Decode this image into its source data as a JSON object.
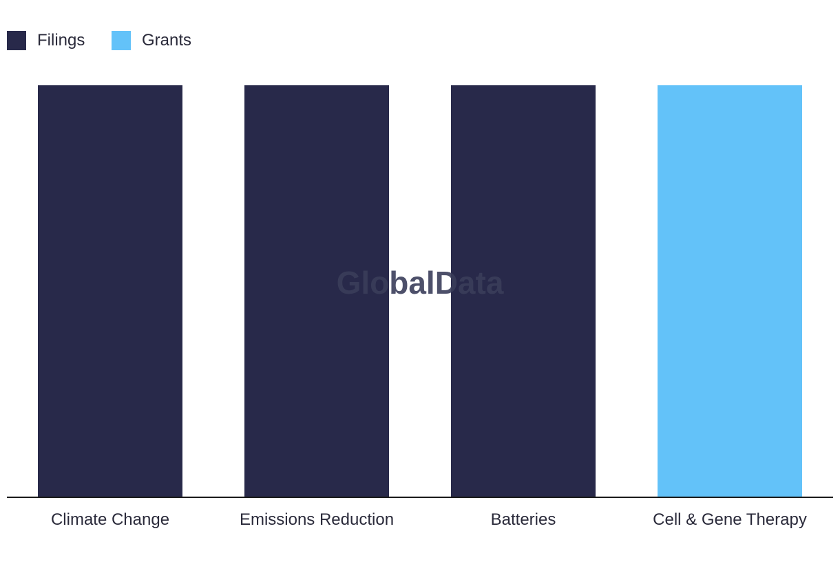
{
  "chart_data": {
    "type": "bar",
    "categories": [
      "Climate Change",
      "Emissions Reduction",
      "Batteries",
      "Cell & Gene Therapy"
    ],
    "series": [
      {
        "name": "Filings",
        "color": "#28294a",
        "values": [
          1,
          1,
          1,
          0
        ]
      },
      {
        "name": "Grants",
        "color": "#63c2f9",
        "values": [
          0,
          0,
          0,
          1
        ]
      }
    ],
    "ylim": [
      0,
      1
    ],
    "grid": false,
    "legend_position": "top-left",
    "watermark": "GlobalData"
  }
}
